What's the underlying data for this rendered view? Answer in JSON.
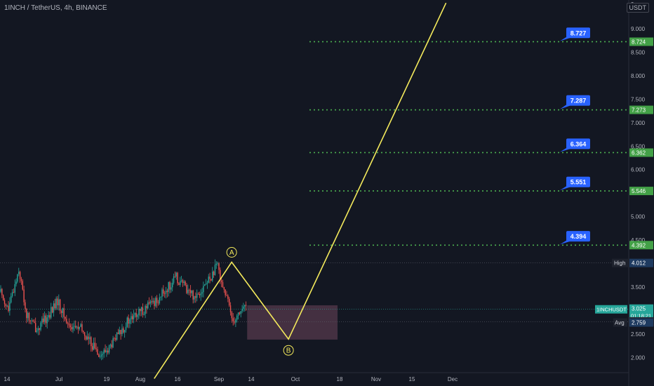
{
  "header": {
    "title": "1INCH / TetherUS, 4h, BINANCE"
  },
  "currency": "USDT",
  "chart_data": {
    "type": "line",
    "x_ticks": [
      "14",
      "Jul",
      "19",
      "Aug",
      "16",
      "Sep",
      "14",
      "Oct",
      "18",
      "Nov",
      "15",
      "Dec"
    ],
    "y_ticks": [
      "9",
      "9.000",
      "8.500",
      "8.000",
      "7.500",
      "7.000",
      "6.500",
      "6.000",
      "5.500",
      "5.000",
      "4.500",
      "4.000",
      "3.500",
      "3.000",
      "2.500",
      "2.000"
    ],
    "ylim": [
      1.55,
      9.55
    ],
    "targets": [
      {
        "callout": "8.727",
        "axis": "8.724"
      },
      {
        "callout": "7.287",
        "axis": "7.273"
      },
      {
        "callout": "6.364",
        "axis": "6.362"
      },
      {
        "callout": "5.551",
        "axis": "5.546"
      },
      {
        "callout": "4.394",
        "axis": "4.392"
      }
    ],
    "high": {
      "label": "High",
      "value": "4.012"
    },
    "symbol": {
      "label": "1INCHUSDT",
      "value": "3.025",
      "countdown": "01:18:21"
    },
    "price2": "2.910",
    "avg": {
      "label": "Avg",
      "value": "2.759"
    },
    "wave_points": [
      {
        "label": "A",
        "price": 4.03
      },
      {
        "label": "B",
        "price": 2.39
      }
    ],
    "wave_path": [
      {
        "date": "Aug 10",
        "price": 1.55
      },
      {
        "date": "Sep 9",
        "price": 4.03
      },
      {
        "date": "Oct 1",
        "price": 2.39
      },
      {
        "date": "Dec 1",
        "price": 9.55
      }
    ],
    "box": {
      "from": "Sep 15",
      "to": "Oct 20",
      "high": 3.11,
      "low": 2.38
    },
    "colors": {
      "up": "#26a69a",
      "down": "#ef5350",
      "wave": "#f4ea5c",
      "target": "#4caf50",
      "callout": "#2962ff"
    }
  }
}
